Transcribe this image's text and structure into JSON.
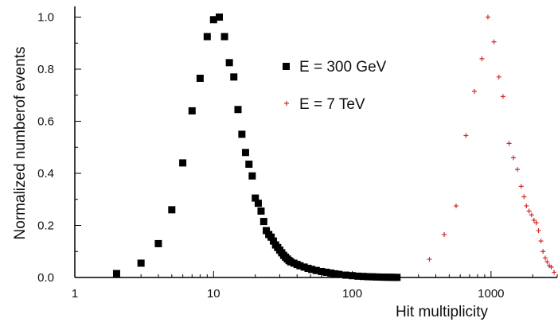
{
  "chart_data": {
    "type": "scatter",
    "title": "",
    "xlabel": "Hit multiplicity",
    "ylabel": "Normalized numberof events",
    "xscale": "log",
    "xlim": [
      1,
      3000
    ],
    "ylim": [
      0,
      1.06
    ],
    "x_ticks": [
      {
        "value": 1,
        "label": "1"
      },
      {
        "value": 10,
        "label": "10"
      },
      {
        "value": 100,
        "label": "100"
      },
      {
        "value": 1000,
        "label": "1000"
      }
    ],
    "y_ticks": [
      {
        "value": 0,
        "label": "0.0"
      },
      {
        "value": 0.2,
        "label": "0.2"
      },
      {
        "value": 0.4,
        "label": "0.4"
      },
      {
        "value": 0.6,
        "label": "0.6"
      },
      {
        "value": 0.8,
        "label": "0.8"
      },
      {
        "value": 1.0,
        "label": "1.0"
      }
    ],
    "grid": false,
    "legend_position": "upper-middle",
    "series": [
      {
        "name": "E = 300 GeV",
        "marker": "square",
        "color": "#000000",
        "points": [
          [
            2,
            0.015
          ],
          [
            3,
            0.055
          ],
          [
            4,
            0.13
          ],
          [
            5,
            0.26
          ],
          [
            6,
            0.44
          ],
          [
            7,
            0.64
          ],
          [
            8,
            0.765
          ],
          [
            9,
            0.925
          ],
          [
            10,
            0.99
          ],
          [
            11,
            1.0
          ],
          [
            12,
            0.925
          ],
          [
            13,
            0.825
          ],
          [
            14,
            0.77
          ],
          [
            15,
            0.645
          ],
          [
            16,
            0.55
          ],
          [
            17,
            0.48
          ],
          [
            18,
            0.435
          ],
          [
            19,
            0.39
          ],
          [
            20,
            0.305
          ],
          [
            21,
            0.285
          ],
          [
            22,
            0.255
          ],
          [
            23,
            0.215
          ],
          [
            24,
            0.18
          ],
          [
            25,
            0.165
          ],
          [
            26,
            0.155
          ],
          [
            27,
            0.14
          ],
          [
            28,
            0.125
          ],
          [
            29,
            0.115
          ],
          [
            30,
            0.105
          ],
          [
            31,
            0.095
          ],
          [
            32,
            0.085
          ],
          [
            33,
            0.078
          ],
          [
            34,
            0.071
          ],
          [
            35,
            0.065
          ],
          [
            36,
            0.06
          ],
          [
            38,
            0.055
          ],
          [
            40,
            0.05
          ],
          [
            42,
            0.045
          ],
          [
            45,
            0.04
          ],
          [
            48,
            0.035
          ],
          [
            51,
            0.031
          ],
          [
            55,
            0.027
          ],
          [
            60,
            0.023
          ],
          [
            65,
            0.02
          ],
          [
            70,
            0.017
          ],
          [
            75,
            0.014
          ],
          [
            80,
            0.012
          ],
          [
            90,
            0.009
          ],
          [
            100,
            0.007
          ],
          [
            110,
            0.005
          ],
          [
            120,
            0.004
          ],
          [
            130,
            0.003
          ],
          [
            140,
            0.0025
          ],
          [
            150,
            0.002
          ],
          [
            160,
            0.0015
          ],
          [
            170,
            0.001
          ],
          [
            180,
            0.001
          ],
          [
            190,
            0.0008
          ],
          [
            200,
            0.0005
          ],
          [
            210,
            0.0003
          ]
        ]
      },
      {
        "name": "E = 7 TeV",
        "marker": "plus",
        "color": "#d42a2a",
        "points": [
          [
            360,
            0.07
          ],
          [
            460,
            0.165
          ],
          [
            560,
            0.275
          ],
          [
            660,
            0.545
          ],
          [
            760,
            0.715
          ],
          [
            860,
            0.84
          ],
          [
            950,
            1.0
          ],
          [
            1050,
            0.905
          ],
          [
            1140,
            0.77
          ],
          [
            1220,
            0.695
          ],
          [
            1350,
            0.515
          ],
          [
            1450,
            0.46
          ],
          [
            1550,
            0.415
          ],
          [
            1650,
            0.35
          ],
          [
            1730,
            0.31
          ],
          [
            1800,
            0.275
          ],
          [
            1880,
            0.255
          ],
          [
            1960,
            0.24
          ],
          [
            2040,
            0.22
          ],
          [
            2120,
            0.21
          ],
          [
            2200,
            0.18
          ],
          [
            2290,
            0.14
          ],
          [
            2370,
            0.1
          ],
          [
            2460,
            0.075
          ],
          [
            2540,
            0.06
          ],
          [
            2630,
            0.045
          ],
          [
            2720,
            0.04
          ],
          [
            2850,
            0.02
          ]
        ]
      }
    ]
  }
}
